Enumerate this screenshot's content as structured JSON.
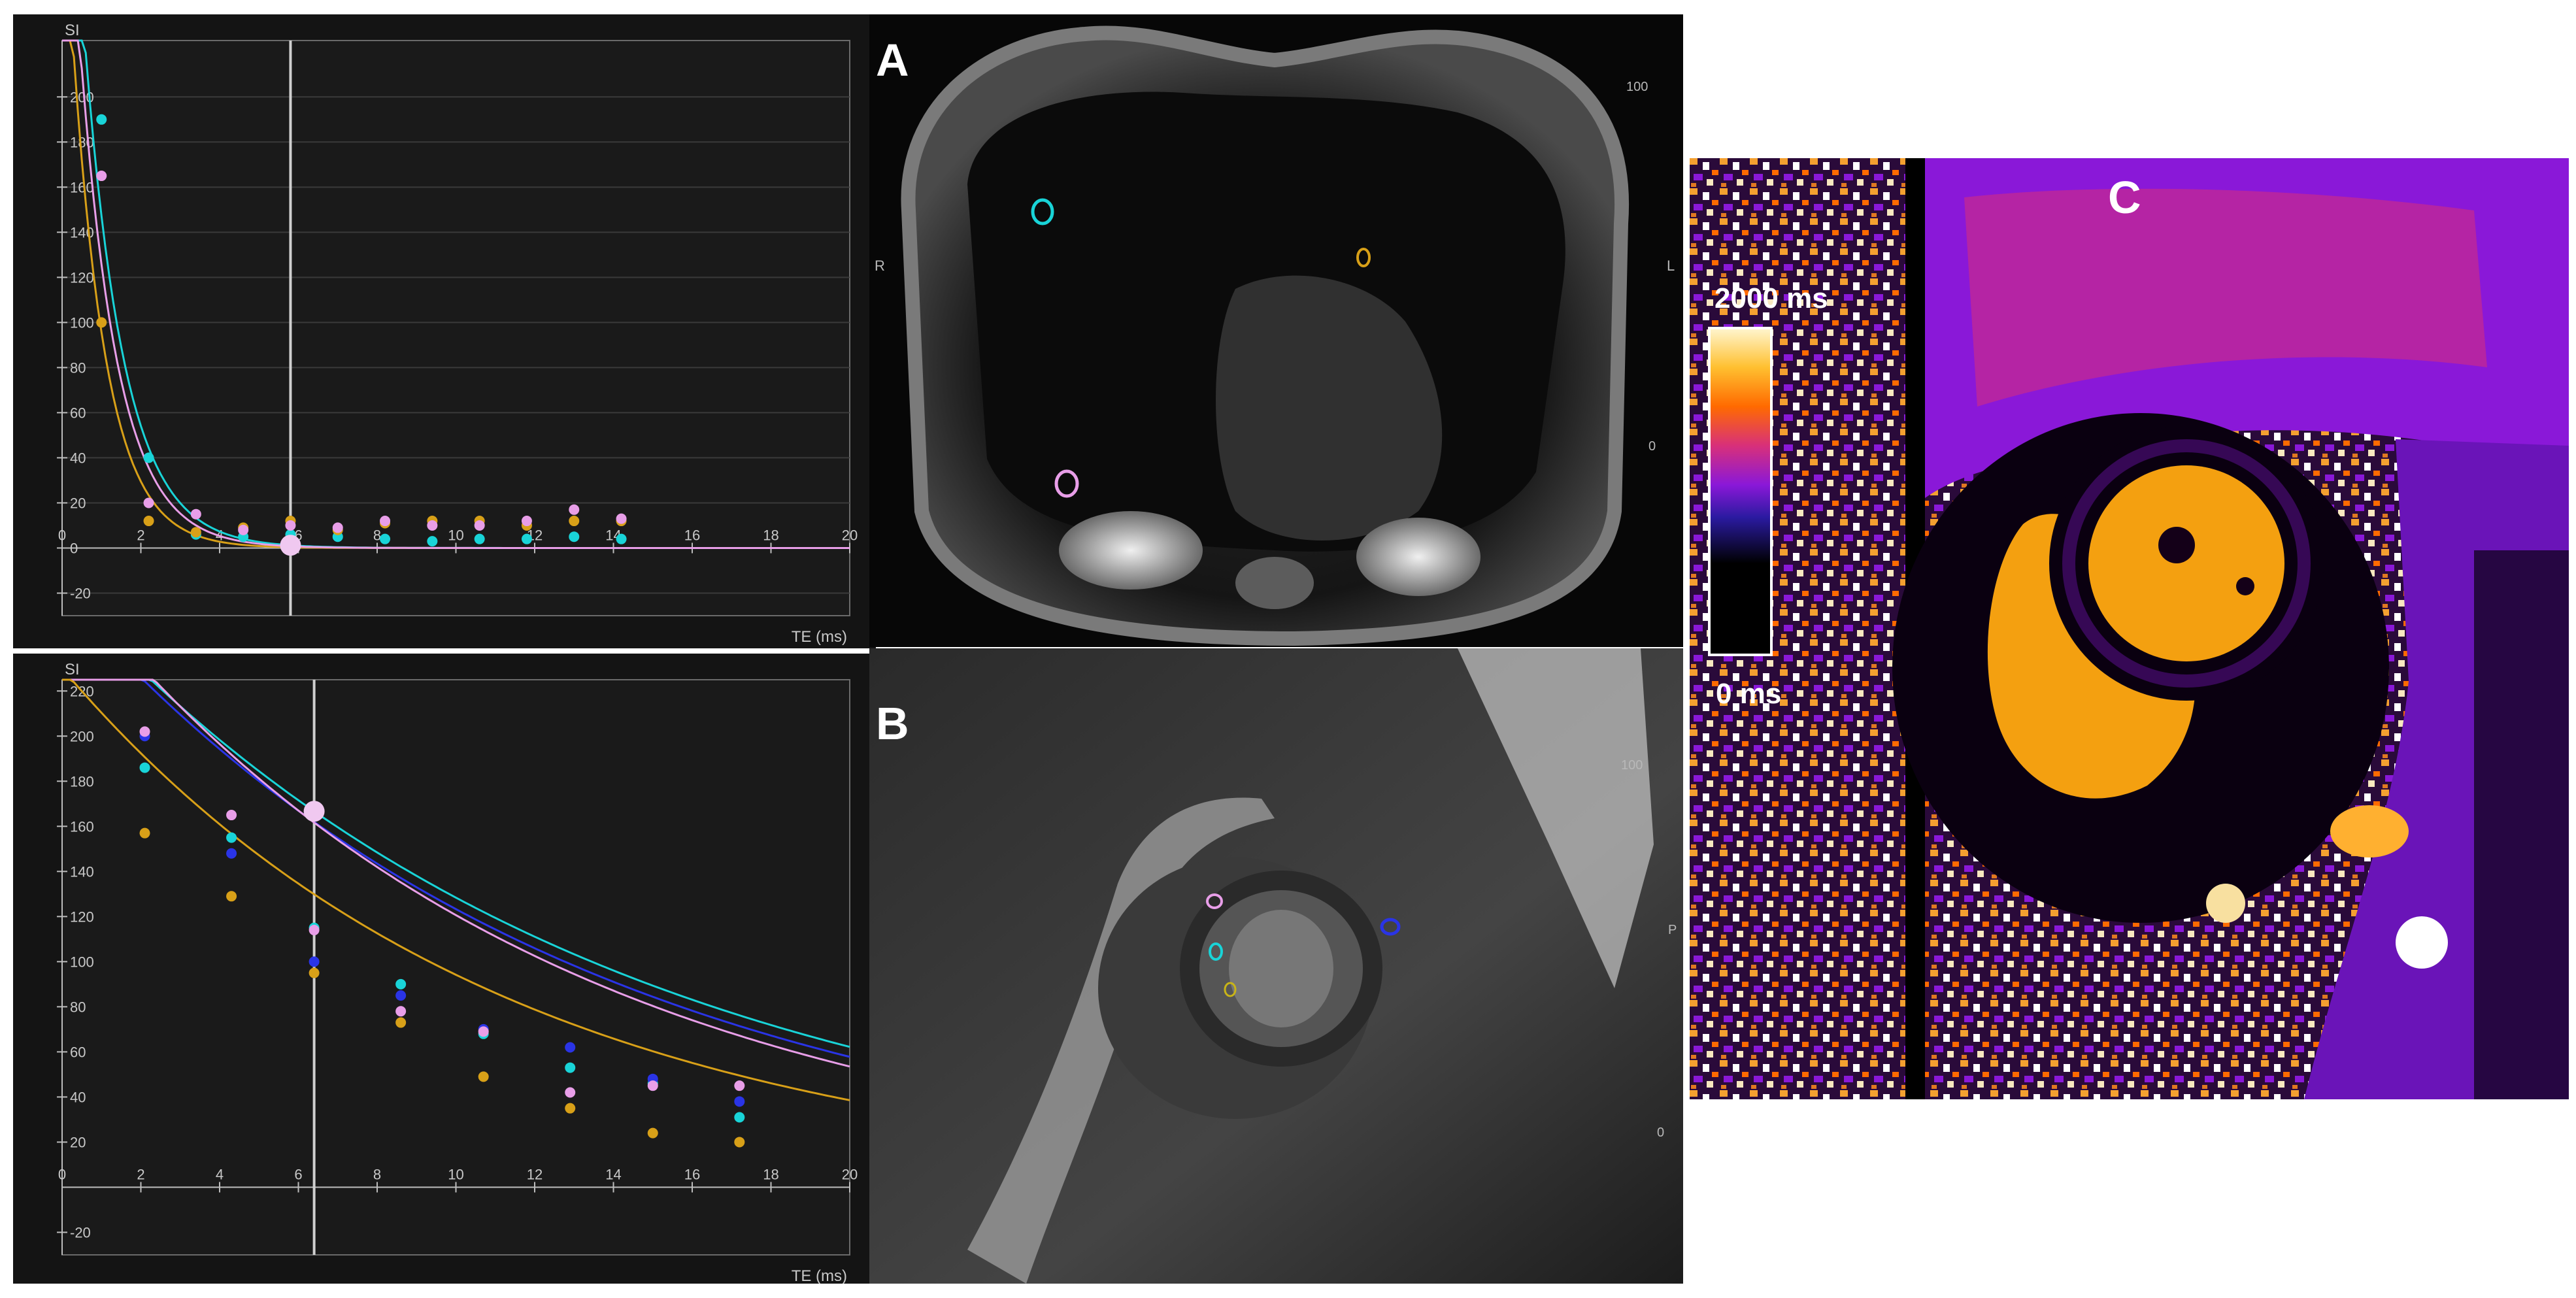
{
  "figure": {
    "panel_labels": {
      "a": "A",
      "b": "B",
      "c": "C"
    },
    "image_a_side_marks": {
      "left": "R",
      "right": "L",
      "scale_top": "100",
      "scale_bottom": "0"
    },
    "image_b_side_marks": {
      "scale_top": "100",
      "scale_mid": "P",
      "scale_bottom": "0"
    },
    "colorbar": {
      "max_label": "2000 ms",
      "min_label": "0 ms"
    }
  },
  "roi_colors": {
    "cyan": "#19d4d8",
    "orange": "#d8a018",
    "pink": "#e89ee8",
    "blue": "#2a34e6",
    "yellow": "#c8b418"
  },
  "chart_data": [
    {
      "type": "scatter",
      "title": "",
      "xlabel": "TE (ms)",
      "ylabel": "SI",
      "xlim": [
        0,
        20
      ],
      "ylim": [
        -30,
        225
      ],
      "xticks": [
        0,
        2,
        4,
        6,
        8,
        10,
        12,
        14,
        16,
        18,
        20
      ],
      "yticks": [
        -20,
        0,
        20,
        40,
        60,
        80,
        100,
        120,
        140,
        160,
        180,
        200
      ],
      "grid": true,
      "cursor_x": 5.8,
      "series": [
        {
          "color": "#19d4d8",
          "te": [
            1.0,
            2.2,
            3.4,
            4.6,
            5.8,
            7.0,
            8.2,
            9.4,
            10.6,
            11.8,
            13.0,
            14.2
          ],
          "si": [
            190,
            40,
            6,
            5,
            6,
            5,
            4,
            3,
            4,
            4,
            5,
            4
          ],
          "fit_s0": 400,
          "fit_t2": 1.0
        },
        {
          "color": "#d8a018",
          "te": [
            1.0,
            2.2,
            3.4,
            4.6,
            5.8,
            7.0,
            8.2,
            9.4,
            10.6,
            11.8,
            13.0,
            14.2
          ],
          "si": [
            100,
            12,
            7,
            9,
            12,
            8,
            11,
            12,
            12,
            10,
            12,
            12
          ],
          "fit_s0": 310,
          "fit_t2": 0.85
        },
        {
          "color": "#e89ee8",
          "te": [
            1.0,
            2.2,
            3.4,
            4.6,
            5.8,
            7.0,
            8.2,
            9.4,
            10.6,
            11.8,
            13.0,
            14.2
          ],
          "si": [
            165,
            20,
            15,
            8,
            10,
            9,
            12,
            10,
            10,
            12,
            17,
            13
          ],
          "fit_s0": 360,
          "fit_t2": 0.95
        }
      ]
    },
    {
      "type": "scatter",
      "title": "",
      "xlabel": "TE (ms)",
      "ylabel": "SI",
      "xlim": [
        0,
        20
      ],
      "ylim": [
        -30,
        225
      ],
      "xticks": [
        0,
        2,
        4,
        6,
        8,
        10,
        12,
        14,
        16,
        18,
        20
      ],
      "yticks": [
        -20,
        20,
        40,
        60,
        80,
        100,
        120,
        140,
        160,
        180,
        200,
        220
      ],
      "grid": false,
      "cursor_x": 6.4,
      "series": [
        {
          "color": "#19d4d8",
          "te": [
            2.1,
            4.3,
            6.4,
            8.6,
            10.7,
            12.9,
            15.0,
            17.2
          ],
          "si": [
            186,
            155,
            115,
            90,
            68,
            53,
            46,
            31
          ],
          "fit_s0": 265,
          "fit_t2": 13.8
        },
        {
          "color": "#2a34e6",
          "te": [
            2.1,
            4.3,
            6.4,
            8.6,
            10.7,
            12.9,
            15.0,
            17.2
          ],
          "si": [
            200,
            148,
            100,
            85,
            70,
            62,
            48,
            38
          ],
          "fit_s0": 263,
          "fit_t2": 13.2
        },
        {
          "color": "#e89ee8",
          "te": [
            2.1,
            4.3,
            6.4,
            8.6,
            10.7,
            12.9,
            15.0,
            17.2
          ],
          "si": [
            202,
            165,
            114,
            78,
            69,
            42,
            45,
            45
          ],
          "fit_s0": 272,
          "fit_t2": 12.3
        },
        {
          "color": "#d8a018",
          "te": [
            2.1,
            4.3,
            6.4,
            8.6,
            10.7,
            12.9,
            15.0,
            17.2
          ],
          "si": [
            157,
            129,
            95,
            73,
            49,
            35,
            24,
            20
          ],
          "fit_s0": 230,
          "fit_t2": 11.2
        }
      ]
    }
  ]
}
